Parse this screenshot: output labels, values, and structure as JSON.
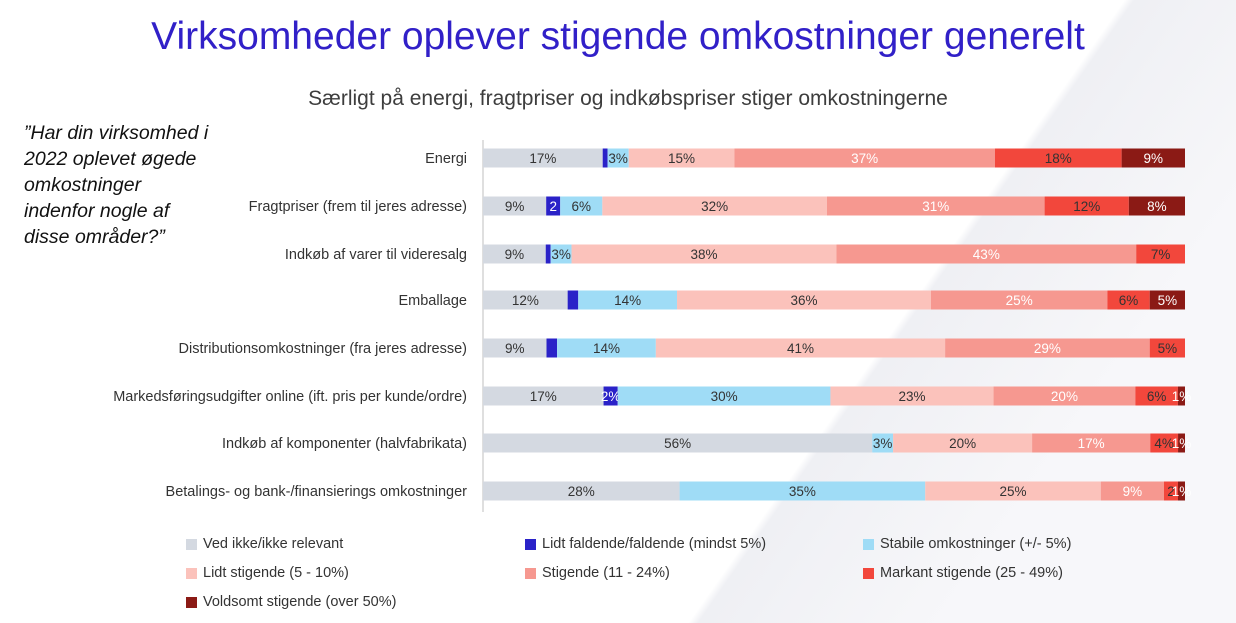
{
  "title": "Virksomheder oplever stigende omkostninger generelt",
  "subtitle": "Særligt på energi, fragtpriser og indkøbspriser stiger omkostningerne",
  "question_lines": [
    "”Har din virksomhed i",
    "2022 oplevet øgede",
    "omkostninger",
    "indenfor nogle af",
    "disse områder?”"
  ],
  "chart_data": {
    "type": "bar",
    "orientation": "horizontal",
    "stacked": true,
    "percent_stacked": true,
    "categories": [
      "Energi",
      "Fragtpriser (frem til jeres adresse)",
      "Indkøb af varer til videresalg",
      "Emballage",
      "Distributionsomkostninger (fra jeres adresse)",
      "Markedsføringsudgifter online (ift. pris per kunde/ordre)",
      "Indkøb af komponenter (halvfabrikata)",
      "Betalings- og bank-/finansierings omkostninger"
    ],
    "series": [
      {
        "name": "Ved ikke/ikke relevant",
        "color": "#d4d9e1",
        "values": [
          17,
          9,
          9,
          12,
          9,
          17,
          56,
          28
        ]
      },
      {
        "name": "Lidt faldende/faldende (mindst 5%)",
        "color": "#2a22c8",
        "values": [
          0.7,
          2,
          0.7,
          1.5,
          1.5,
          2,
          0,
          0
        ]
      },
      {
        "name": "Stabile omkostninger (+/- 5%)",
        "color": "#9fdcf6",
        "values": [
          3,
          6,
          3,
          14,
          14,
          30,
          3,
          35
        ]
      },
      {
        "name": "Lidt stigende (5 - 10%)",
        "color": "#fbc2bb",
        "values": [
          15,
          32,
          38,
          36,
          41,
          23,
          20,
          25
        ]
      },
      {
        "name": "Stigende (11 - 24%)",
        "color": "#f69890",
        "values": [
          37,
          31,
          43,
          25,
          29,
          20,
          17,
          9
        ]
      },
      {
        "name": "Markant stigende (25 - 49%)",
        "color": "#f2473c",
        "values": [
          18,
          12,
          7,
          6,
          5,
          6,
          4,
          2
        ]
      },
      {
        "name": "Voldsomt stigende (over 50%)",
        "color": "#8b1a15",
        "values": [
          9,
          8,
          0,
          5,
          0,
          1,
          1,
          1
        ]
      }
    ],
    "data_labels": [
      [
        "17%",
        "",
        "3%",
        "15%",
        "37%",
        "18%",
        "9%"
      ],
      [
        "9%",
        "2",
        "6%",
        "32%",
        "31%",
        "12%",
        "8%"
      ],
      [
        "9%",
        "",
        "3%",
        "38%",
        "43%",
        "7%",
        ""
      ],
      [
        "12%",
        "",
        "14%",
        "36%",
        "25%",
        "6%",
        "5%"
      ],
      [
        "9%",
        "",
        "14%",
        "41%",
        "29%",
        "5%",
        ""
      ],
      [
        "17%",
        "2%",
        "30%",
        "23%",
        "20%",
        "6%",
        "1%"
      ],
      [
        "56%",
        "",
        "3%",
        "20%",
        "17%",
        "4%",
        "1%"
      ],
      [
        "28%",
        "",
        "35%",
        "25%",
        "9%",
        "2",
        "1%"
      ]
    ],
    "label_colors": [
      "#333333",
      "#ffffff",
      "#333333",
      "#333333",
      "#ffffff",
      "#333333",
      "#ffffff"
    ],
    "legend_position": "bottom",
    "grid": false
  }
}
